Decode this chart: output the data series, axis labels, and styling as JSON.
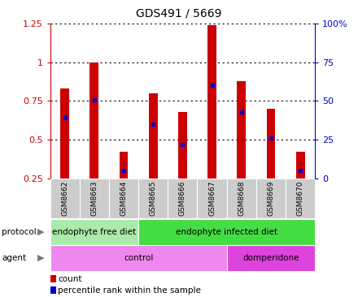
{
  "title": "GDS491 / 5669",
  "samples": [
    "GSM8662",
    "GSM8663",
    "GSM8664",
    "GSM8665",
    "GSM8666",
    "GSM8667",
    "GSM8668",
    "GSM8669",
    "GSM8670"
  ],
  "bar_tops": [
    0.83,
    1.0,
    0.42,
    0.8,
    0.68,
    1.24,
    0.88,
    0.7,
    0.42
  ],
  "bar_bottom": 0.25,
  "percentile_values": [
    0.64,
    0.76,
    0.3,
    0.6,
    0.47,
    0.85,
    0.68,
    0.51,
    0.3
  ],
  "bar_color": "#cc0000",
  "percentile_color": "#0000cc",
  "ylim_left": [
    0.25,
    1.25
  ],
  "ylim_right": [
    0,
    100
  ],
  "yticks_left": [
    0.25,
    0.5,
    0.75,
    1.0,
    1.25
  ],
  "ytick_labels_left": [
    "0.25",
    "0.5",
    "0.75",
    "1",
    "1.25"
  ],
  "yticks_right": [
    0,
    25,
    50,
    75,
    100
  ],
  "ytick_labels_right": [
    "0",
    "25",
    "50",
    "75",
    "100%"
  ],
  "protocol_groups": [
    {
      "label": "endophyte free diet",
      "start": 0,
      "end": 3,
      "color": "#aaeaaa"
    },
    {
      "label": "endophyte infected diet",
      "start": 3,
      "end": 9,
      "color": "#44dd44"
    }
  ],
  "agent_groups": [
    {
      "label": "control",
      "start": 0,
      "end": 6,
      "color": "#ee88ee"
    },
    {
      "label": "domperidone",
      "start": 6,
      "end": 9,
      "color": "#dd44dd"
    }
  ],
  "protocol_label": "protocol",
  "agent_label": "agent",
  "legend_count_label": "count",
  "legend_percentile_label": "percentile rank within the sample",
  "left_axis_color": "#cc0000",
  "right_axis_color": "#0000cc",
  "plot_bg": "#ffffff",
  "xticklabel_bg": "#cccccc",
  "bar_width": 0.3
}
